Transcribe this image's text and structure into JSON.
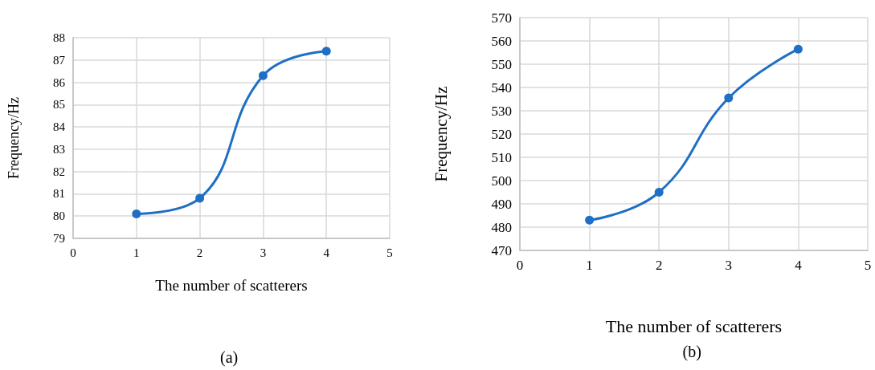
{
  "chart_data": [
    {
      "type": "line",
      "xlabel": "The number of scatterers",
      "ylabel": "Frequency/Hz",
      "annotations": [
        "(a)"
      ],
      "x": [
        1,
        2,
        3,
        4
      ],
      "series": [
        {
          "color": "#1f6fc5",
          "values": [
            80.1,
            80.8,
            86.3,
            87.4
          ]
        }
      ],
      "xlim": [
        0,
        5
      ],
      "xticks": [
        0,
        1,
        2,
        3,
        4,
        5
      ],
      "ylim": [
        79,
        88
      ],
      "yticks": [
        79,
        80,
        81,
        82,
        83,
        84,
        85,
        86,
        87,
        88
      ],
      "grid": true,
      "marker": "circle",
      "line_style": "solid"
    },
    {
      "type": "line",
      "xlabel": "The number of scatterers",
      "ylabel": "Frequency/Hz",
      "annotations": [
        "(b)"
      ],
      "x": [
        1,
        2,
        3,
        4
      ],
      "series": [
        {
          "color": "#1f6fc5",
          "values": [
            483,
            495,
            535.5,
            556.5
          ]
        }
      ],
      "xlim": [
        0,
        5
      ],
      "xticks": [
        0,
        1,
        2,
        3,
        4,
        5
      ],
      "ylim": [
        470,
        570
      ],
      "yticks": [
        470,
        480,
        490,
        500,
        510,
        520,
        530,
        540,
        550,
        560,
        570
      ],
      "grid": true,
      "marker": "circle",
      "line_style": "solid"
    }
  ]
}
